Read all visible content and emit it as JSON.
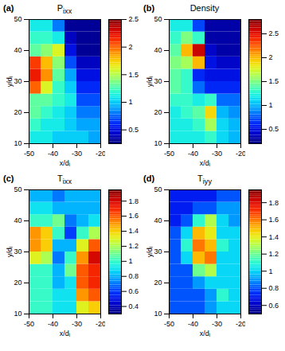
{
  "chart_data": [
    {
      "type": "heatmap",
      "panel": "(a)",
      "title": "P",
      "title_subscript": "ixx",
      "xlabel": "x/dᵢ",
      "ylabel": "y/dᵢ",
      "xlim": [
        -50,
        -20
      ],
      "xticks": [
        -50,
        -40,
        -30,
        -20
      ],
      "ylim": [
        10,
        50
      ],
      "yticks": [
        10,
        20,
        30,
        40,
        50
      ],
      "x": [
        -47.5,
        -42.5,
        -37.5,
        -32.5,
        -27.5,
        -22.5
      ],
      "y": [
        12,
        16,
        20,
        24,
        28,
        32,
        36,
        40,
        44,
        48
      ],
      "cells": [
        [
          1.1,
          1.1,
          1.0,
          1.0,
          1.0,
          0.9
        ],
        [
          1.2,
          1.1,
          1.1,
          1.0,
          0.9,
          0.9
        ],
        [
          1.3,
          1.2,
          1.1,
          1.0,
          0.8,
          0.8
        ],
        [
          1.3,
          1.3,
          1.2,
          1.1,
          0.7,
          0.7
        ],
        [
          2.0,
          1.6,
          1.2,
          1.0,
          0.6,
          0.6
        ],
        [
          2.2,
          1.9,
          1.3,
          0.9,
          0.5,
          0.5
        ],
        [
          2.1,
          1.8,
          1.4,
          0.7,
          0.4,
          0.4
        ],
        [
          1.3,
          1.4,
          1.6,
          0.5,
          0.3,
          0.3
        ],
        [
          1.2,
          1.2,
          1.1,
          0.4,
          0.3,
          0.3
        ],
        [
          1.1,
          1.1,
          0.8,
          0.3,
          0.3,
          0.3
        ]
      ],
      "colorbar": {
        "range": [
          0.25,
          2.5
        ],
        "ticks": [
          0.5,
          1,
          1.5,
          2,
          2.5
        ]
      }
    },
    {
      "type": "heatmap",
      "panel": "(b)",
      "title": "Density",
      "xlabel": "x/dᵢ",
      "ylabel": "y/dᵢ",
      "xlim": [
        -50,
        -20
      ],
      "xticks": [
        -50,
        -40,
        -30,
        -20
      ],
      "ylim": [
        10,
        50
      ],
      "yticks": [
        10,
        20,
        30,
        40,
        50
      ],
      "x": [
        -47.5,
        -42.5,
        -37.5,
        -32.5,
        -27.5,
        -22.5
      ],
      "y": [
        12,
        16,
        20,
        24,
        28,
        32,
        36,
        40,
        44,
        48
      ],
      "cells": [
        [
          1.2,
          1.2,
          1.2,
          1.3,
          1.1,
          1.0
        ],
        [
          1.2,
          1.2,
          1.3,
          1.6,
          1.1,
          1.0
        ],
        [
          1.2,
          1.3,
          1.4,
          1.9,
          1.0,
          0.9
        ],
        [
          1.3,
          1.3,
          1.2,
          1.3,
          0.8,
          0.8
        ],
        [
          1.4,
          1.3,
          0.8,
          0.6,
          0.6,
          0.6
        ],
        [
          1.4,
          1.3,
          0.6,
          0.5,
          0.5,
          0.5
        ],
        [
          1.5,
          1.6,
          2.0,
          0.5,
          0.4,
          0.4
        ],
        [
          1.4,
          2.0,
          2.6,
          0.4,
          0.3,
          0.3
        ],
        [
          1.3,
          1.5,
          1.3,
          0.3,
          0.3,
          0.3
        ],
        [
          1.2,
          1.2,
          0.7,
          0.3,
          0.3,
          0.3
        ]
      ],
      "colorbar": {
        "range": [
          0.2,
          2.8
        ],
        "ticks": [
          0.5,
          1,
          1.5,
          2,
          2.5
        ]
      }
    },
    {
      "type": "heatmap",
      "panel": "(c)",
      "title": "T",
      "title_subscript": "ixx",
      "xlabel": "x/dᵢ",
      "ylabel": "y/dᵢ",
      "xlim": [
        -50,
        -20
      ],
      "xticks": [
        -50,
        -40,
        -30,
        -20
      ],
      "ylim": [
        10,
        50
      ],
      "yticks": [
        10,
        20,
        30,
        40,
        50
      ],
      "x": [
        -47.5,
        -42.5,
        -37.5,
        -32.5,
        -27.5,
        -22.5
      ],
      "y": [
        12,
        16,
        20,
        24,
        28,
        32,
        36,
        40,
        44,
        48
      ],
      "cells": [
        [
          1.0,
          1.0,
          0.9,
          0.9,
          1.3,
          1.4
        ],
        [
          1.0,
          1.0,
          0.9,
          0.9,
          1.5,
          1.6
        ],
        [
          1.0,
          1.0,
          0.8,
          0.9,
          1.6,
          1.7
        ],
        [
          1.0,
          1.0,
          0.8,
          1.1,
          1.6,
          1.7
        ],
        [
          1.3,
          1.2,
          0.7,
          1.0,
          1.5,
          1.8
        ],
        [
          1.5,
          1.4,
          0.8,
          0.8,
          1.3,
          1.6
        ],
        [
          1.5,
          1.4,
          1.0,
          0.6,
          1.0,
          1.2
        ],
        [
          1.0,
          1.0,
          1.1,
          0.7,
          0.8,
          0.9
        ],
        [
          0.9,
          0.9,
          0.8,
          0.8,
          0.8,
          0.8
        ],
        [
          0.8,
          0.8,
          0.7,
          0.8,
          0.8,
          0.8
        ]
      ],
      "colorbar": {
        "range": [
          0.3,
          1.95
        ],
        "ticks": [
          0.4,
          0.6,
          0.8,
          1,
          1.2,
          1.4,
          1.6,
          1.8
        ]
      }
    },
    {
      "type": "heatmap",
      "panel": "(d)",
      "title": "T",
      "title_subscript": "iyy",
      "xlabel": "x/dᵢ",
      "ylabel": "y/dᵢ",
      "xlim": [
        -50,
        -20
      ],
      "xticks": [
        -50,
        -40,
        -30,
        -20
      ],
      "ylim": [
        10,
        50
      ],
      "yticks": [
        10,
        20,
        30,
        40,
        50
      ],
      "x": [
        -47.5,
        -42.5,
        -37.5,
        -32.5,
        -27.5,
        -22.5
      ],
      "y": [
        12,
        16,
        20,
        24,
        28,
        32,
        36,
        40,
        44,
        48
      ],
      "cells": [
        [
          0.8,
          0.8,
          0.8,
          0.9,
          1.0,
          1.0
        ],
        [
          0.8,
          0.8,
          0.8,
          0.9,
          1.1,
          1.0
        ],
        [
          0.8,
          0.8,
          0.9,
          1.0,
          1.0,
          1.0
        ],
        [
          0.8,
          0.8,
          1.2,
          1.3,
          1.0,
          1.0
        ],
        [
          0.8,
          1.0,
          1.5,
          1.6,
          1.0,
          1.0
        ],
        [
          0.8,
          1.1,
          1.6,
          1.5,
          1.1,
          1.0
        ],
        [
          0.8,
          1.0,
          1.5,
          1.4,
          1.0,
          1.0
        ],
        [
          0.7,
          0.8,
          1.1,
          1.3,
          1.0,
          0.9
        ],
        [
          0.7,
          0.7,
          0.8,
          0.8,
          0.9,
          0.9
        ],
        [
          0.7,
          0.7,
          0.7,
          0.7,
          0.8,
          0.8
        ]
      ],
      "colorbar": {
        "range": [
          0.5,
          1.95
        ],
        "ticks": [
          0.6,
          0.8,
          1,
          1.2,
          1.4,
          1.6,
          1.8
        ]
      }
    }
  ]
}
